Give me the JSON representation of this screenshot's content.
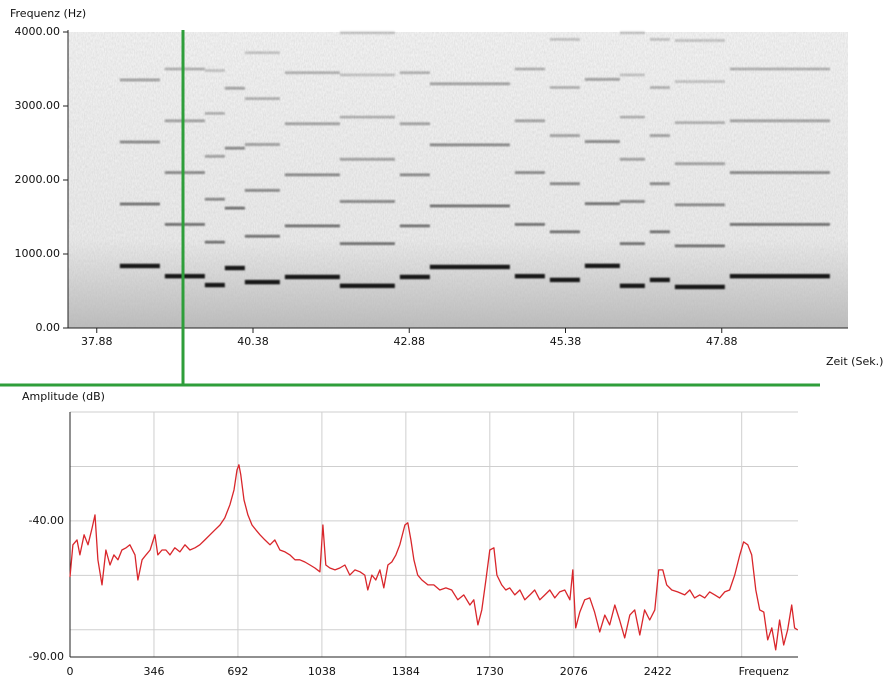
{
  "chart_data": [
    {
      "type": "spectrogram",
      "y_label": "Frequenz (Hz)",
      "x_label": "Zeit (Sek.)",
      "xlim": [
        37.42,
        49.9
      ],
      "ylim": [
        0,
        4000
      ],
      "xticks": [
        37.88,
        40.38,
        42.88,
        45.38,
        47.88
      ],
      "yticks": [
        {
          "value": 0,
          "label": "0.00"
        },
        {
          "value": 1000,
          "label": "1000.00"
        },
        {
          "value": 2000,
          "label": "2000.00"
        },
        {
          "value": 3000,
          "label": "3000.00"
        },
        {
          "value": 4000,
          "label": "4000.00"
        }
      ],
      "cursor": 39.26,
      "cursor_color": "#2e9e3a",
      "color": "#111111",
      "notes": [
        {
          "start": 38.25,
          "end": 38.89,
          "f0": 838
        },
        {
          "start": 38.97,
          "end": 39.61,
          "f0": 700
        },
        {
          "start": 39.61,
          "end": 39.93,
          "f0": 580
        },
        {
          "start": 39.93,
          "end": 40.25,
          "f0": 810
        },
        {
          "start": 40.25,
          "end": 40.81,
          "f0": 620
        },
        {
          "start": 40.89,
          "end": 41.77,
          "f0": 690
        },
        {
          "start": 41.77,
          "end": 42.65,
          "f0": 570
        },
        {
          "start": 42.73,
          "end": 43.21,
          "f0": 690
        },
        {
          "start": 43.21,
          "end": 44.49,
          "f0": 825
        },
        {
          "start": 44.57,
          "end": 45.05,
          "f0": 700
        },
        {
          "start": 45.13,
          "end": 45.61,
          "f0": 650
        },
        {
          "start": 45.69,
          "end": 46.25,
          "f0": 840
        },
        {
          "start": 46.25,
          "end": 46.65,
          "f0": 570
        },
        {
          "start": 46.73,
          "end": 47.05,
          "f0": 650
        },
        {
          "start": 47.13,
          "end": 47.93,
          "f0": 555
        },
        {
          "start": 48.01,
          "end": 49.61,
          "f0": 700
        }
      ]
    },
    {
      "type": "line",
      "y_label": "Amplitude (dB)",
      "xlim": [
        0,
        3000
      ],
      "ylim": [
        -90,
        0
      ],
      "xticks": [
        0,
        346,
        692,
        1038,
        1384,
        1730,
        2076,
        2422,
        {
          "value": 2768,
          "label": "Frequenz"
        }
      ],
      "yticks": [
        {
          "value": -40,
          "label": "-40.00"
        },
        {
          "value": -90,
          "label": "-90.00"
        }
      ],
      "ygrid": [
        0,
        -20,
        -60,
        -80
      ],
      "grid": true,
      "color": "#d9262b",
      "x": [
        0,
        12,
        29,
        41,
        58,
        74,
        91,
        103,
        115,
        132,
        148,
        165,
        181,
        198,
        214,
        231,
        247,
        268,
        280,
        297,
        313,
        330,
        350,
        362,
        379,
        395,
        412,
        432,
        453,
        474,
        494,
        515,
        535,
        556,
        577,
        597,
        618,
        638,
        659,
        676,
        688,
        696,
        704,
        717,
        733,
        750,
        766,
        783,
        803,
        824,
        844,
        865,
        886,
        906,
        927,
        947,
        968,
        989,
        1009,
        1030,
        1042,
        1054,
        1071,
        1092,
        1112,
        1133,
        1153,
        1174,
        1195,
        1215,
        1227,
        1244,
        1260,
        1277,
        1293,
        1310,
        1326,
        1343,
        1359,
        1380,
        1392,
        1405,
        1417,
        1433,
        1450,
        1475,
        1499,
        1524,
        1549,
        1573,
        1598,
        1623,
        1648,
        1664,
        1681,
        1697,
        1714,
        1730,
        1747,
        1759,
        1779,
        1796,
        1812,
        1833,
        1854,
        1874,
        1895,
        1915,
        1936,
        1957,
        1977,
        1998,
        2018,
        2039,
        2060,
        2072,
        2084,
        2101,
        2121,
        2142,
        2162,
        2183,
        2204,
        2224,
        2245,
        2265,
        2286,
        2307,
        2327,
        2348,
        2368,
        2389,
        2410,
        2426,
        2443,
        2459,
        2480,
        2504,
        2533,
        2554,
        2574,
        2595,
        2616,
        2636,
        2657,
        2677,
        2698,
        2718,
        2739,
        2760,
        2776,
        2793,
        2809,
        2826,
        2842,
        2859,
        2875,
        2892,
        2908,
        2924,
        2941,
        2957,
        2974,
        2986,
        2999
      ],
      "values": [
        -60.6,
        -48.8,
        -47.0,
        -52.5,
        -45.1,
        -48.8,
        -42.6,
        -37.8,
        -54.3,
        -63.5,
        -50.7,
        -56.2,
        -52.5,
        -54.3,
        -50.7,
        -49.9,
        -48.8,
        -52.5,
        -61.7,
        -54.3,
        -52.5,
        -50.7,
        -45.1,
        -52.5,
        -50.7,
        -50.7,
        -52.5,
        -49.9,
        -51.4,
        -48.8,
        -50.7,
        -49.9,
        -48.8,
        -47.0,
        -45.1,
        -43.3,
        -41.5,
        -38.9,
        -34.1,
        -28.6,
        -21.3,
        -19.4,
        -23.1,
        -32.3,
        -37.8,
        -41.5,
        -43.3,
        -45.1,
        -47.0,
        -48.8,
        -47.0,
        -50.7,
        -51.4,
        -52.5,
        -54.3,
        -54.3,
        -55.1,
        -56.2,
        -57.3,
        -58.7,
        -41.5,
        -56.2,
        -57.3,
        -58.0,
        -57.3,
        -56.2,
        -59.9,
        -58.0,
        -58.7,
        -59.9,
        -65.4,
        -59.9,
        -61.7,
        -58.0,
        -64.6,
        -56.2,
        -55.1,
        -52.5,
        -48.8,
        -41.5,
        -40.7,
        -47.0,
        -54.3,
        -59.9,
        -61.7,
        -63.5,
        -63.5,
        -65.4,
        -64.6,
        -65.4,
        -69.0,
        -67.2,
        -70.9,
        -69.0,
        -78.2,
        -72.7,
        -61.7,
        -50.7,
        -49.9,
        -59.9,
        -63.5,
        -65.4,
        -64.6,
        -67.2,
        -65.4,
        -69.0,
        -67.2,
        -65.4,
        -69.0,
        -67.2,
        -65.4,
        -68.3,
        -66.1,
        -65.4,
        -69.0,
        -58.0,
        -79.3,
        -73.5,
        -69.0,
        -68.3,
        -73.5,
        -80.8,
        -74.6,
        -78.2,
        -70.9,
        -76.4,
        -83.0,
        -74.6,
        -72.7,
        -81.9,
        -72.7,
        -76.4,
        -72.7,
        -58.0,
        -58.0,
        -63.5,
        -65.4,
        -66.1,
        -67.2,
        -65.4,
        -68.3,
        -67.2,
        -68.3,
        -66.1,
        -67.2,
        -68.3,
        -66.1,
        -65.4,
        -59.9,
        -52.5,
        -47.7,
        -48.8,
        -52.5,
        -65.4,
        -72.7,
        -73.5,
        -83.7,
        -79.3,
        -87.4,
        -76.4,
        -85.6,
        -80.1,
        -70.9,
        -79.3,
        -80.1
      ]
    }
  ]
}
